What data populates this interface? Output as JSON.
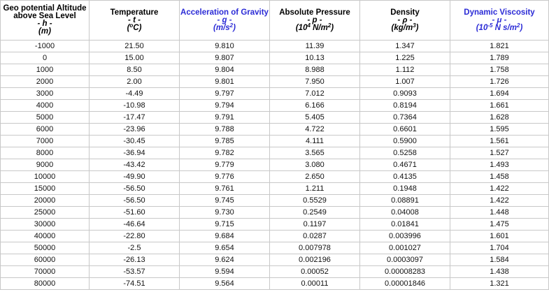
{
  "table": {
    "columns": [
      {
        "title": "Geo potential Altitude above Sea Level",
        "symbol": "- h -",
        "unit_parts": [
          "(m)"
        ],
        "color": "#000000"
      },
      {
        "title": "Temperature",
        "symbol": "- t -",
        "unit_parts": [
          "(",
          "o",
          "C)"
        ],
        "color": "#000000"
      },
      {
        "title": "Acceleration of Gravity",
        "symbol": "- g -",
        "unit_parts": [
          "(m/s",
          "2",
          ")"
        ],
        "color": "#2b2bd6"
      },
      {
        "title": "Absolute Pressure",
        "symbol": "- p -",
        "unit_parts": [
          "(10",
          "4",
          " N/m",
          "2",
          ")"
        ],
        "color": "#000000"
      },
      {
        "title": "Density",
        "symbol": "- ρ -",
        "unit_parts": [
          "(kg/m",
          "3",
          ")"
        ],
        "color": "#000000"
      },
      {
        "title": "Dynamic Viscosity",
        "symbol": "- μ -",
        "unit_parts": [
          "(10",
          "-5",
          " N s/m",
          "2",
          ")"
        ],
        "color": "#2b2bd6"
      }
    ],
    "rows": [
      [
        "-1000",
        "21.50",
        "9.810",
        "11.39",
        "1.347",
        "1.821"
      ],
      [
        "0",
        "15.00",
        "9.807",
        "10.13",
        "1.225",
        "1.789"
      ],
      [
        "1000",
        "8.50",
        "9.804",
        "8.988",
        "1.112",
        "1.758"
      ],
      [
        "2000",
        "2.00",
        "9.801",
        "7.950",
        "1.007",
        "1.726"
      ],
      [
        "3000",
        "-4.49",
        "9.797",
        "7.012",
        "0.9093",
        "1.694"
      ],
      [
        "4000",
        "-10.98",
        "9.794",
        "6.166",
        "0.8194",
        "1.661"
      ],
      [
        "5000",
        "-17.47",
        "9.791",
        "5.405",
        "0.7364",
        "1.628"
      ],
      [
        "6000",
        "-23.96",
        "9.788",
        "4.722",
        "0.6601",
        "1.595"
      ],
      [
        "7000",
        "-30.45",
        "9.785",
        "4.111",
        "0.5900",
        "1.561"
      ],
      [
        "8000",
        "-36.94",
        "9.782",
        "3.565",
        "0.5258",
        "1.527"
      ],
      [
        "9000",
        "-43.42",
        "9.779",
        "3.080",
        "0.4671",
        "1.493"
      ],
      [
        "10000",
        "-49.90",
        "9.776",
        "2.650",
        "0.4135",
        "1.458"
      ],
      [
        "15000",
        "-56.50",
        "9.761",
        "1.211",
        "0.1948",
        "1.422"
      ],
      [
        "20000",
        "-56.50",
        "9.745",
        "0.5529",
        "0.08891",
        "1.422"
      ],
      [
        "25000",
        "-51.60",
        "9.730",
        "0.2549",
        "0.04008",
        "1.448"
      ],
      [
        "30000",
        "-46.64",
        "9.715",
        "0.1197",
        "0.01841",
        "1.475"
      ],
      [
        "40000",
        "-22.80",
        "9.684",
        "0.0287",
        "0.003996",
        "1.601"
      ],
      [
        "50000",
        "-2.5",
        "9.654",
        "0.007978",
        "0.001027",
        "1.704"
      ],
      [
        "60000",
        "-26.13",
        "9.624",
        "0.002196",
        "0.0003097",
        "1.584"
      ],
      [
        "70000",
        "-53.57",
        "9.594",
        "0.00052",
        "0.00008283",
        "1.438"
      ],
      [
        "80000",
        "-74.51",
        "9.564",
        "0.00011",
        "0.00001846",
        "1.321"
      ]
    ]
  }
}
